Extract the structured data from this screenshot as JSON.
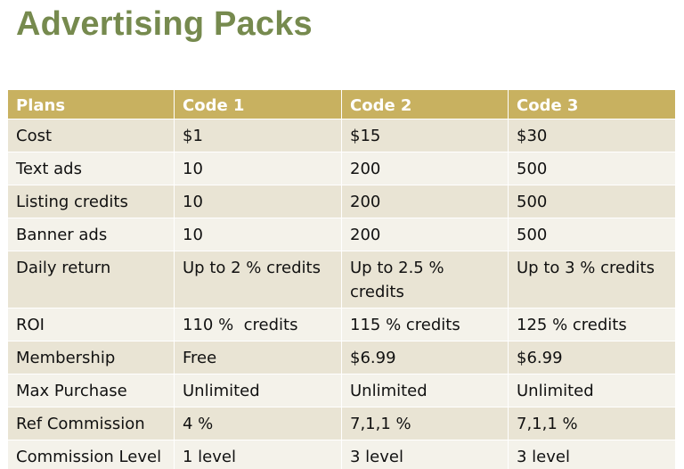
{
  "title": "Advertising Packs",
  "table": {
    "headers": [
      "Plans",
      "Code 1",
      "Code 2",
      "Code 3"
    ],
    "rows": [
      [
        "Cost",
        "$1",
        "$15",
        "$30"
      ],
      [
        "Text ads",
        "10",
        "200",
        "500"
      ],
      [
        "Listing credits",
        "10",
        "200",
        "500"
      ],
      [
        "Banner ads",
        "10",
        "200",
        "500"
      ],
      [
        "Daily return",
        "Up to 2 % credits",
        "Up to 2.5 % credits",
        "Up to 3 % credits"
      ],
      [
        "ROI",
        "110 %  credits",
        "115 % credits",
        "125 % credits"
      ],
      [
        "Membership",
        "Free",
        "$6.99",
        "$6.99"
      ],
      [
        "Max Purchase",
        "Unlimited",
        "Unlimited",
        "Unlimited"
      ],
      [
        "Ref Commission",
        "4 %",
        "7,1,1 %",
        "7,1,1 %"
      ],
      [
        "Commission Level",
        "1 level",
        "3 level",
        "3 level"
      ]
    ]
  },
  "colors": {
    "title": "#768a4e",
    "header_bg": "#c8b160",
    "row_odd": "#e9e4d4",
    "row_even": "#f4f2ea"
  }
}
